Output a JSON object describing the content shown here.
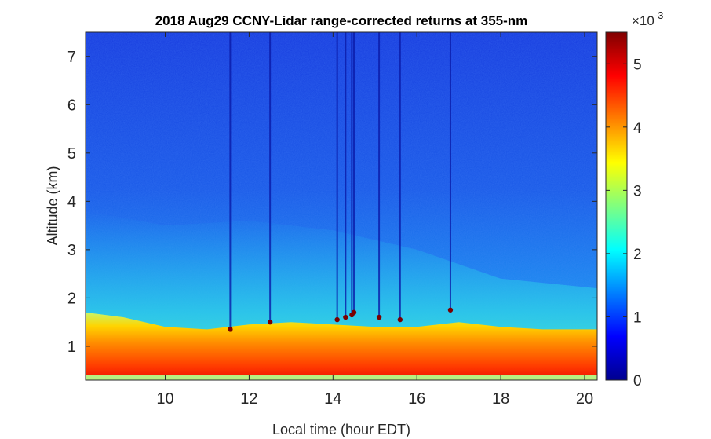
{
  "chart_data": {
    "type": "heatmap",
    "title": "2018 Aug29 CCNY-Lidar range-corrected returns at 355-nm",
    "xlabel": "Local time (hour EDT)",
    "ylabel": "Altitude (km)",
    "xlim": [
      8.1,
      20.3
    ],
    "ylim": [
      0.3,
      7.5
    ],
    "x_ticks": [
      10,
      12,
      14,
      16,
      18,
      20
    ],
    "y_ticks": [
      1,
      2,
      3,
      4,
      5,
      6,
      7
    ],
    "colorbar": {
      "colormap": "jet",
      "clim": [
        0,
        5.5
      ],
      "ticks": [
        0,
        1,
        2,
        3,
        4,
        5
      ],
      "scale_label": "×10",
      "scale_exponent": "-3"
    },
    "grid": false,
    "boundary_layer_top_km": [
      {
        "time": 8.1,
        "alt": 1.7
      },
      {
        "time": 9.0,
        "alt": 1.6
      },
      {
        "time": 10.0,
        "alt": 1.4
      },
      {
        "time": 11.0,
        "alt": 1.35
      },
      {
        "time": 12.0,
        "alt": 1.45
      },
      {
        "time": 13.0,
        "alt": 1.5
      },
      {
        "time": 14.0,
        "alt": 1.45
      },
      {
        "time": 15.0,
        "alt": 1.4
      },
      {
        "time": 16.0,
        "alt": 1.4
      },
      {
        "time": 17.0,
        "alt": 1.5
      },
      {
        "time": 18.0,
        "alt": 1.4
      },
      {
        "time": 19.0,
        "alt": 1.35
      },
      {
        "time": 20.3,
        "alt": 1.35
      }
    ],
    "residual_layer_top_km": [
      {
        "time": 8.1,
        "alt": 3.8
      },
      {
        "time": 10.0,
        "alt": 3.5
      },
      {
        "time": 12.0,
        "alt": 3.6
      },
      {
        "time": 14.0,
        "alt": 3.4
      },
      {
        "time": 16.0,
        "alt": 3.0
      },
      {
        "time": 18.0,
        "alt": 2.4
      },
      {
        "time": 20.3,
        "alt": 2.2
      }
    ],
    "cloud_streaks": [
      {
        "time": 11.55,
        "cloud_alt": 1.35
      },
      {
        "time": 12.5,
        "cloud_alt": 1.5
      },
      {
        "time": 14.1,
        "cloud_alt": 1.55
      },
      {
        "time": 14.3,
        "cloud_alt": 1.6
      },
      {
        "time": 14.45,
        "cloud_alt": 1.65
      },
      {
        "time": 14.5,
        "cloud_alt": 1.7
      },
      {
        "time": 15.1,
        "cloud_alt": 1.6
      },
      {
        "time": 15.6,
        "cloud_alt": 1.55
      },
      {
        "time": 16.8,
        "cloud_alt": 1.75
      }
    ]
  }
}
